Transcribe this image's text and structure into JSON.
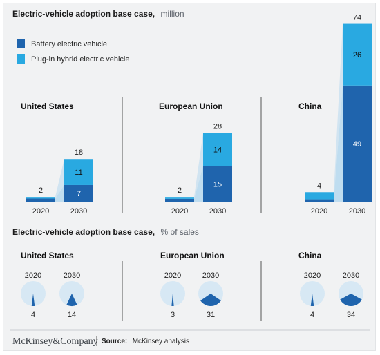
{
  "colors": {
    "bev": "#1f64ad",
    "phev": "#29a9e1",
    "connector": "#b6d9ee",
    "pie_bg": "#d7e8f4",
    "divider": "#555555"
  },
  "top": {
    "title_bold": "Electric-vehicle adoption base case,",
    "title_light": "million"
  },
  "bottom": {
    "title_bold": "Electric-vehicle adoption base case,",
    "title_light": "% of sales"
  },
  "legend": {
    "bev": "Battery electric vehicle",
    "phev": "Plug-in hybrid electric vehicle"
  },
  "footer": {
    "brand": "McKinsey&Company",
    "source_label": "Source:",
    "source_text": "McKinsey analysis"
  },
  "chart_data": [
    {
      "type": "bar",
      "stacked": true,
      "ylim": [
        0,
        74
      ],
      "regions": [
        {
          "name": "United States",
          "categories": [
            "2020",
            "2030"
          ],
          "series": [
            {
              "name": "Battery electric vehicle",
              "values": [
                1.3,
                7
              ]
            },
            {
              "name": "Plug-in hybrid electric vehicle",
              "values": [
                0.7,
                11
              ]
            }
          ],
          "totals": [
            2,
            18
          ],
          "labels_2030": [
            7,
            11
          ]
        },
        {
          "name": "European Union",
          "categories": [
            "2020",
            "2030"
          ],
          "series": [
            {
              "name": "Battery electric vehicle",
              "values": [
                1.2,
                15
              ]
            },
            {
              "name": "Plug-in hybrid electric vehicle",
              "values": [
                0.8,
                14
              ]
            }
          ],
          "totals": [
            2,
            28
          ],
          "labels_2030": [
            15,
            14
          ]
        },
        {
          "name": "China",
          "categories": [
            "2020",
            "2030"
          ],
          "series": [
            {
              "name": "Battery electric vehicle",
              "values": [
                1.0,
                49
              ]
            },
            {
              "name": "Plug-in hybrid electric vehicle",
              "values": [
                3.0,
                26
              ]
            }
          ],
          "totals": [
            4,
            74
          ],
          "labels_2030": [
            49,
            26
          ]
        }
      ]
    },
    {
      "type": "pie",
      "unit": "% of sales",
      "regions": [
        {
          "name": "United States",
          "categories": [
            "2020",
            "2030"
          ],
          "values": [
            4,
            14
          ]
        },
        {
          "name": "European Union",
          "categories": [
            "2020",
            "2030"
          ],
          "values": [
            3,
            31
          ]
        },
        {
          "name": "China",
          "categories": [
            "2020",
            "2030"
          ],
          "values": [
            4,
            34
          ]
        }
      ]
    }
  ]
}
